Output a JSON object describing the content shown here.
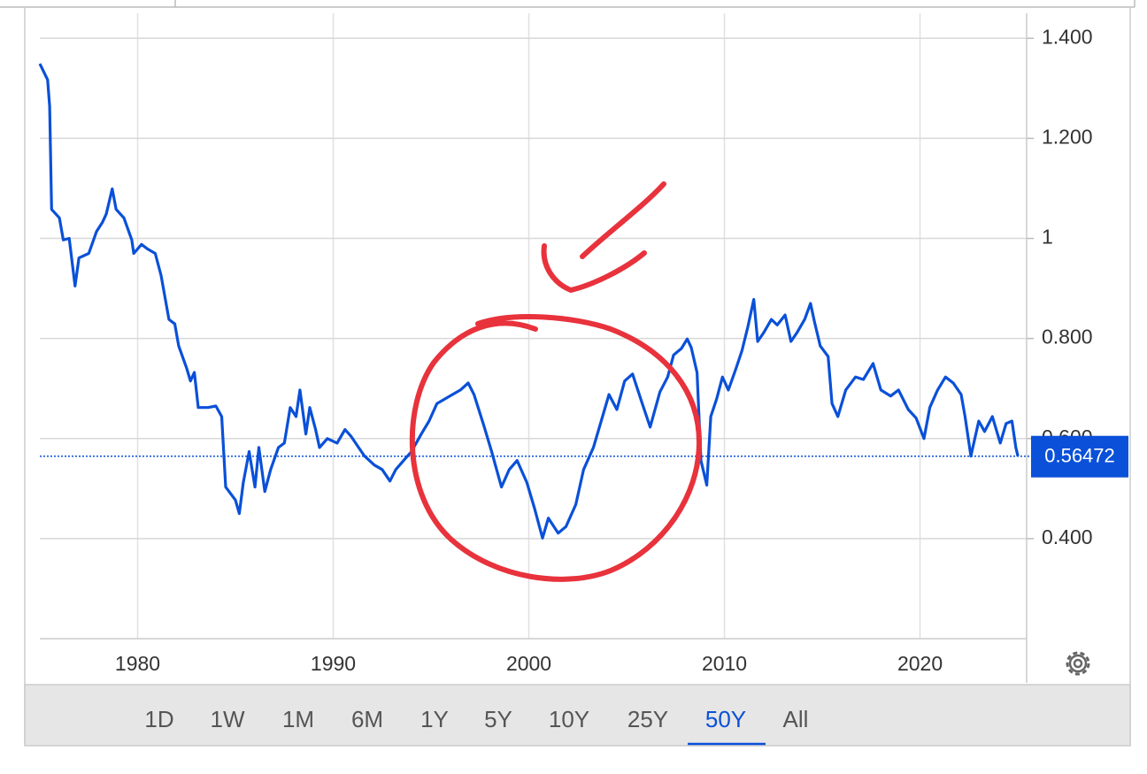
{
  "chart_data": {
    "type": "line",
    "x": [
      1975.0,
      1975.4,
      1975.5,
      1975.6,
      1976.0,
      1976.2,
      1976.5,
      1976.8,
      1977.0,
      1977.5,
      1977.9,
      1978.2,
      1978.4,
      1978.7,
      1978.9,
      1979.3,
      1979.7,
      1979.8,
      1980.2,
      1980.5,
      1980.9,
      1981.2,
      1981.6,
      1981.9,
      1982.1,
      1982.5,
      1982.7,
      1982.9,
      1983.1,
      1983.6,
      1984.0,
      1984.3,
      1984.5,
      1985.0,
      1985.2,
      1985.4,
      1985.7,
      1986.0,
      1986.2,
      1986.5,
      1986.8,
      1987.2,
      1987.5,
      1987.8,
      1988.1,
      1988.3,
      1988.6,
      1988.8,
      1989.1,
      1989.3,
      1989.7,
      1990.2,
      1990.6,
      1990.9,
      1991.3,
      1991.6,
      1992.1,
      1992.5,
      1992.9,
      1993.2,
      1993.6,
      1994.0,
      1994.5,
      1994.9,
      1995.3,
      1995.7,
      1996.1,
      1996.5,
      1996.9,
      1997.2,
      1997.7,
      1998.1,
      1998.6,
      1999.0,
      1999.4,
      1999.9,
      2000.3,
      2000.7,
      2001.0,
      2001.5,
      2001.9,
      2002.4,
      2002.8,
      2003.3,
      2003.7,
      2004.1,
      2004.5,
      2004.9,
      2005.3,
      2005.8,
      2006.2,
      2006.7,
      2007.1,
      2007.4,
      2007.8,
      2008.1,
      2008.3,
      2008.6,
      2008.8,
      2009.1,
      2009.3,
      2009.6,
      2009.9,
      2010.2,
      2010.6,
      2010.9,
      2011.2,
      2011.5,
      2011.7,
      2012.0,
      2012.4,
      2012.7,
      2013.1,
      2013.4,
      2013.7,
      2014.1,
      2014.4,
      2014.6,
      2014.9,
      2015.3,
      2015.5,
      2015.8,
      2016.2,
      2016.7,
      2017.1,
      2017.6,
      2018.0,
      2018.5,
      2018.9,
      2019.4,
      2019.8,
      2020.2,
      2020.5,
      2020.9,
      2021.3,
      2021.7,
      2022.1,
      2022.3,
      2022.6,
      2023.0,
      2023.3,
      2023.7,
      2024.1,
      2024.4,
      2024.7,
      2024.9,
      2025.0
    ],
    "series": [
      {
        "color": "#0a50d8",
        "values": [
          1.349,
          1.317,
          1.264,
          1.058,
          1.041,
          0.997,
          1.0,
          0.905,
          0.961,
          0.97,
          1.014,
          1.032,
          1.049,
          1.099,
          1.058,
          1.041,
          0.997,
          0.97,
          0.988,
          0.979,
          0.97,
          0.926,
          0.838,
          0.829,
          0.785,
          0.741,
          0.715,
          0.732,
          0.662,
          0.662,
          0.665,
          0.644,
          0.503,
          0.477,
          0.45,
          0.512,
          0.574,
          0.503,
          0.582,
          0.494,
          0.538,
          0.582,
          0.591,
          0.662,
          0.644,
          0.697,
          0.609,
          0.662,
          0.618,
          0.582,
          0.6,
          0.591,
          0.618,
          0.605,
          0.582,
          0.565,
          0.547,
          0.538,
          0.515,
          0.538,
          0.556,
          0.574,
          0.609,
          0.635,
          0.67,
          0.679,
          0.688,
          0.697,
          0.711,
          0.688,
          0.626,
          0.574,
          0.503,
          0.538,
          0.556,
          0.512,
          0.459,
          0.401,
          0.441,
          0.411,
          0.424,
          0.468,
          0.538,
          0.582,
          0.635,
          0.688,
          0.658,
          0.715,
          0.729,
          0.67,
          0.623,
          0.693,
          0.723,
          0.767,
          0.78,
          0.799,
          0.782,
          0.732,
          0.556,
          0.507,
          0.644,
          0.679,
          0.723,
          0.697,
          0.741,
          0.776,
          0.824,
          0.878,
          0.794,
          0.811,
          0.838,
          0.827,
          0.847,
          0.794,
          0.811,
          0.838,
          0.87,
          0.834,
          0.785,
          0.764,
          0.67,
          0.644,
          0.697,
          0.723,
          0.718,
          0.75,
          0.697,
          0.685,
          0.697,
          0.658,
          0.641,
          0.6,
          0.662,
          0.697,
          0.723,
          0.711,
          0.688,
          0.644,
          0.565,
          0.635,
          0.614,
          0.644,
          0.591,
          0.63,
          0.635,
          0.582,
          0.565
        ]
      }
    ],
    "xlim": [
      1975,
      2025.45
    ],
    "xticks": [
      1980,
      1990,
      2000,
      2010,
      2020
    ],
    "ylim": [
      0.2,
      1.45
    ],
    "yticks": [
      {
        "value": 0.4,
        "label": "0.400"
      },
      {
        "value": 0.6,
        "label": "0.600"
      },
      {
        "value": 0.8,
        "label": "0.800"
      },
      1,
      {
        "value": 1.2,
        "label": "1.200"
      },
      {
        "value": 1.4,
        "label": "1.400"
      }
    ],
    "grid": true,
    "current_value": 0.56472,
    "current_color": "#0a50d8",
    "range_buttons": [
      "1D",
      "1W",
      "1M",
      "6M",
      "1Y",
      "5Y",
      "10Y",
      "25Y",
      "50Y",
      "All"
    ],
    "active_range": "50Y"
  }
}
